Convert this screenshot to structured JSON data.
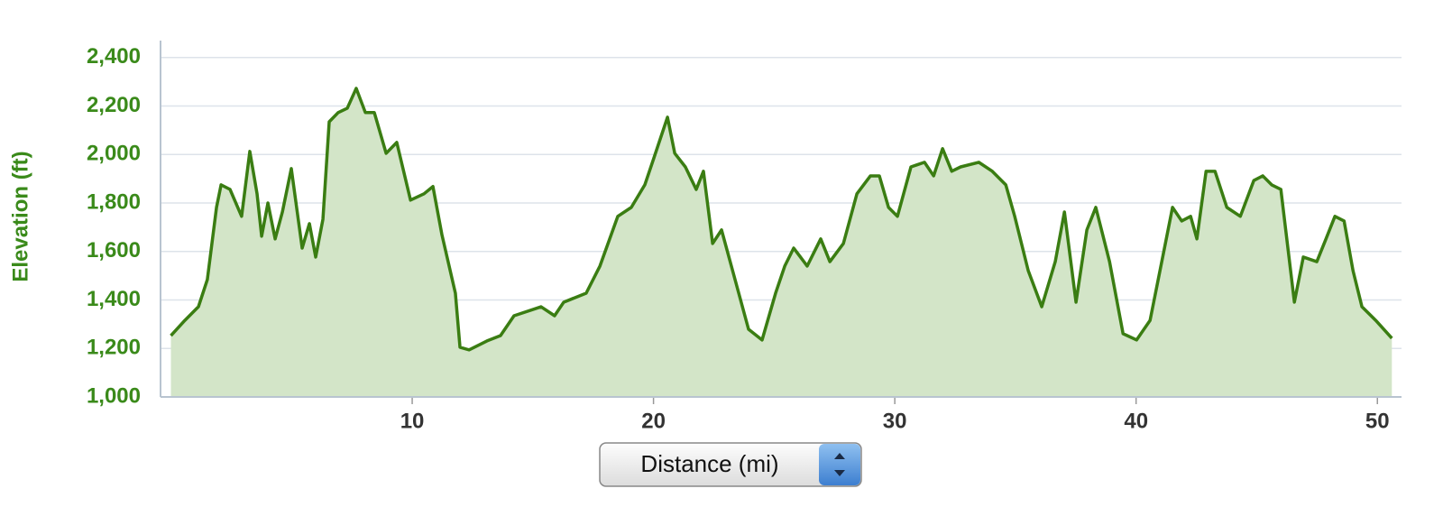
{
  "chart_data": {
    "type": "area",
    "ylabel": "Elevation (ft)",
    "xlabel": "Distance (mi)",
    "x": [
      0,
      0.58,
      1.14,
      1.51,
      1.89,
      2.08,
      2.45,
      2.93,
      3.27,
      3.57,
      3.76,
      4.02,
      4.32,
      4.62,
      4.99,
      5.44,
      5.74,
      6.0,
      6.3,
      6.56,
      6.93,
      7.31,
      7.68,
      8.06,
      8.43,
      8.92,
      9.36,
      9.93,
      10.49,
      10.86,
      11.23,
      11.79,
      11.98,
      12.36,
      13.1,
      13.66,
      14.22,
      15.34,
      15.9,
      16.28,
      17.21,
      17.78,
      18.52,
      19.08,
      19.64,
      20.02,
      20.58,
      20.88,
      21.32,
      21.77,
      22.07,
      22.45,
      22.82,
      23.38,
      23.94,
      24.5,
      25.06,
      25.44,
      25.81,
      26.37,
      26.93,
      27.31,
      27.87,
      28.43,
      28.99,
      29.36,
      29.74,
      30.11,
      30.67,
      31.23,
      31.61,
      31.98,
      32.36,
      32.73,
      33.48,
      34.04,
      34.6,
      34.97,
      35.53,
      36.09,
      36.65,
      37.03,
      37.51,
      37.96,
      38.33,
      38.9,
      39.46,
      40.02,
      40.58,
      41.14,
      41.51,
      41.89,
      42.26,
      42.52,
      42.9,
      43.27,
      43.76,
      44.32,
      44.88,
      45.25,
      45.62,
      46.0,
      46.56,
      46.93,
      47.49,
      47.87,
      48.24,
      48.62,
      48.99,
      49.36,
      49.93,
      50.6
    ],
    "series": [
      {
        "color": "#3a7d12",
        "fill": "#d3e5c8",
        "values": [
          1253,
          1316,
          1372,
          1484,
          1782,
          1875,
          1856,
          1745,
          2013,
          1838,
          1663,
          1800,
          1652,
          1763,
          1942,
          1614,
          1715,
          1577,
          1733,
          2135,
          2173,
          2191,
          2273,
          2173,
          2173,
          2005,
          2050,
          1812,
          1838,
          1868,
          1670,
          1428,
          1205,
          1194,
          1231,
          1253,
          1335,
          1372,
          1335,
          1391,
          1428,
          1540,
          1745,
          1782,
          1875,
          1987,
          2154,
          2005,
          1949,
          1856,
          1931,
          1633,
          1689,
          1484,
          1279,
          1235,
          1428,
          1540,
          1614,
          1540,
          1652,
          1558,
          1633,
          1838,
          1912,
          1912,
          1782,
          1745,
          1949,
          1968,
          1912,
          2024,
          1931,
          1949,
          1968,
          1931,
          1875,
          1745,
          1521,
          1372,
          1558,
          1763,
          1391,
          1689,
          1782,
          1558,
          1261,
          1235,
          1316,
          1596,
          1782,
          1726,
          1745,
          1652,
          1931,
          1931,
          1782,
          1745,
          1893,
          1912,
          1875,
          1856,
          1391,
          1577,
          1558,
          1652,
          1745,
          1726,
          1521,
          1372,
          1316,
          1242
        ]
      }
    ],
    "xlim": [
      -0.43,
      51.0
    ],
    "ylim": [
      1000,
      2470
    ],
    "xticks": [
      10,
      20,
      30,
      40,
      50
    ],
    "yticks": [
      {
        "value": 1000,
        "label": "1,000"
      },
      {
        "value": 1200,
        "label": "1,200"
      },
      {
        "value": 1400,
        "label": "1,400"
      },
      {
        "value": 1600,
        "label": "1,600"
      },
      {
        "value": 1800,
        "label": "1,800"
      },
      {
        "value": 2000,
        "label": "2,000"
      },
      {
        "value": 2200,
        "label": "2,200"
      },
      {
        "value": 2400,
        "label": "2,400"
      }
    ],
    "grid": true
  }
}
